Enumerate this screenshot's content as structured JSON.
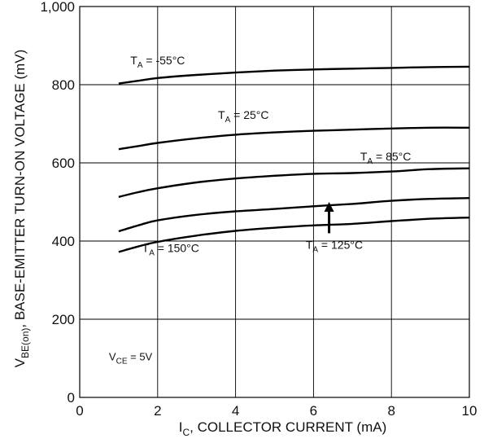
{
  "chart_data": {
    "type": "line",
    "xlabel": {
      "main": "I",
      "sub": "C",
      "rest": ", COLLECTOR CURRENT (mA)"
    },
    "ylabel": {
      "main": "V",
      "sub": "BE(on)",
      "rest": ", BASE-EMITTER TURN-ON VOLTAGE (mV)"
    },
    "xlim": [
      0,
      10
    ],
    "ylim": [
      0,
      1000
    ],
    "x_ticks": [
      0,
      2,
      4,
      6,
      8,
      10
    ],
    "x_tick_labels": [
      "0",
      "2",
      "4",
      "6",
      "8",
      "10"
    ],
    "y_ticks": [
      0,
      200,
      400,
      600,
      800,
      1000
    ],
    "y_tick_labels": [
      "0",
      "200",
      "400",
      "600",
      "800",
      "1,000"
    ],
    "grid": true,
    "note": {
      "main": "V",
      "sub": "CE",
      "rest": " = 5V"
    },
    "x": [
      1,
      1.5,
      2,
      3,
      4,
      5,
      6,
      7,
      8,
      9,
      10
    ],
    "series": [
      {
        "label_main": "T",
        "label_sub": "A",
        "label_rest": " = -55°C",
        "values": [
          803,
          810,
          817,
          825,
          831,
          836,
          839,
          841,
          843,
          845,
          846
        ]
      },
      {
        "label_main": "T",
        "label_sub": "A",
        "label_rest": " = 25°C",
        "values": [
          635,
          643,
          651,
          663,
          672,
          678,
          682,
          685,
          688,
          690,
          690
        ]
      },
      {
        "label_main": "T",
        "label_sub": "A",
        "label_rest": " = 85°C",
        "values": [
          513,
          525,
          535,
          550,
          560,
          567,
          572,
          574,
          578,
          584,
          586
        ]
      },
      {
        "label_main": "T",
        "label_sub": "A",
        "label_rest": " = 125°C",
        "values": [
          425,
          440,
          453,
          467,
          476,
          482,
          489,
          495,
          503,
          508,
          510
        ]
      },
      {
        "label_main": "T",
        "label_sub": "A",
        "label_rest": " = 150°C",
        "values": [
          372,
          386,
          398,
          414,
          426,
          434,
          440,
          444,
          451,
          457,
          460
        ]
      }
    ],
    "arrow": {
      "x": 6.4,
      "y_from": 420,
      "y_to": 500
    }
  }
}
